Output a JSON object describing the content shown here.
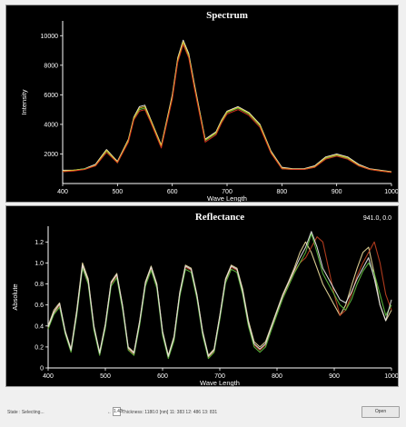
{
  "charts": {
    "spectrum": {
      "title": "Spectrum",
      "ylabel": "Intensity",
      "xlabel": "Wave Length",
      "xticks": [
        "400",
        "500",
        "600",
        "700",
        "800",
        "900",
        "1000"
      ],
      "yticks": [
        "2000",
        "4000",
        "6000",
        "8000",
        "10000"
      ]
    },
    "reflectance": {
      "title": "Reflectance",
      "ylabel": "Absolute",
      "xlabel": "Wave Length",
      "cursor_readout": "941.0, 0.0",
      "xticks": [
        "400",
        "500",
        "600",
        "700",
        "800",
        "900",
        "1000"
      ],
      "yticks": [
        "0",
        "0.2",
        "0.4",
        "0.6",
        "0.8",
        "1.0",
        "1.2"
      ]
    }
  },
  "chart_data": [
    {
      "type": "line",
      "title": "Spectrum",
      "xlabel": "Wave Length",
      "ylabel": "Intensity",
      "xlim": [
        400,
        1000
      ],
      "ylim": [
        0,
        11000
      ],
      "series_colors": [
        "#ffffff",
        "#60d040",
        "#e0c020",
        "#e03020"
      ],
      "x": [
        400,
        420,
        440,
        460,
        470,
        480,
        500,
        520,
        530,
        540,
        550,
        560,
        580,
        600,
        610,
        620,
        630,
        640,
        660,
        680,
        690,
        700,
        720,
        740,
        760,
        780,
        800,
        820,
        840,
        860,
        880,
        900,
        920,
        940,
        960,
        980,
        1000
      ],
      "series": [
        {
          "values": [
            900,
            900,
            1000,
            1300,
            1800,
            2300,
            1500,
            3000,
            4500,
            5200,
            5300,
            4400,
            2600,
            6000,
            8500,
            9700,
            8800,
            6800,
            3000,
            3500,
            4300,
            4900,
            5200,
            4800,
            4000,
            2200,
            1100,
            1000,
            1000,
            1200,
            1800,
            2000,
            1800,
            1300,
            1000,
            900,
            800
          ]
        },
        {
          "values": [
            800,
            900,
            1000,
            1200,
            1700,
            2200,
            1400,
            2900,
            4400,
            5000,
            5100,
            4300,
            2500,
            5800,
            8300,
            9500,
            8600,
            6600,
            2900,
            3400,
            4200,
            4800,
            5100,
            4700,
            3900,
            2100,
            1000,
            950,
            950,
            1100,
            1700,
            1900,
            1700,
            1200,
            950,
            850,
            750
          ]
        },
        {
          "values": [
            850,
            900,
            950,
            1250,
            1750,
            2250,
            1450,
            2950,
            4450,
            5100,
            5200,
            4350,
            2550,
            5900,
            8400,
            9600,
            8700,
            6700,
            2950,
            3450,
            4250,
            4850,
            5150,
            4750,
            3950,
            2150,
            1050,
            980,
            980,
            1150,
            1750,
            1950,
            1750,
            1250,
            980,
            880,
            780
          ]
        },
        {
          "values": [
            800,
            850,
            950,
            1200,
            1650,
            2100,
            1400,
            2800,
            4300,
            4900,
            5000,
            4200,
            2400,
            5700,
            8200,
            9400,
            8500,
            6500,
            2800,
            3300,
            4100,
            4700,
            5000,
            4600,
            3800,
            2050,
            1000,
            950,
            950,
            1100,
            1650,
            1850,
            1650,
            1200,
            950,
            850,
            750
          ]
        }
      ]
    },
    {
      "type": "line",
      "title": "Reflectance",
      "xlabel": "Wave Length",
      "ylabel": "Absolute",
      "xlim": [
        400,
        1000
      ],
      "ylim": [
        0,
        1.35
      ],
      "series_colors": [
        "#f0e0a0",
        "#c04020",
        "#60c040",
        "#e8e8e8"
      ],
      "x": [
        400,
        410,
        420,
        430,
        440,
        450,
        460,
        470,
        480,
        490,
        500,
        510,
        520,
        530,
        540,
        550,
        560,
        570,
        580,
        590,
        600,
        610,
        620,
        630,
        640,
        650,
        660,
        670,
        680,
        690,
        700,
        710,
        720,
        730,
        740,
        750,
        760,
        770,
        780,
        790,
        800,
        810,
        820,
        830,
        840,
        850,
        860,
        870,
        880,
        890,
        900,
        910,
        920,
        930,
        940,
        950,
        960,
        970,
        980,
        990,
        1000
      ],
      "series": [
        {
          "values": [
            0.4,
            0.55,
            0.62,
            0.35,
            0.18,
            0.55,
            1.0,
            0.85,
            0.4,
            0.15,
            0.42,
            0.82,
            0.9,
            0.6,
            0.2,
            0.15,
            0.45,
            0.82,
            0.97,
            0.8,
            0.35,
            0.12,
            0.3,
            0.72,
            0.98,
            0.95,
            0.7,
            0.35,
            0.12,
            0.18,
            0.5,
            0.85,
            0.98,
            0.95,
            0.75,
            0.45,
            0.25,
            0.2,
            0.25,
            0.4,
            0.55,
            0.7,
            0.82,
            0.95,
            1.1,
            1.2,
            1.1,
            0.95,
            0.8,
            0.7,
            0.6,
            0.5,
            0.6,
            0.78,
            0.95,
            1.1,
            1.15,
            0.9,
            0.6,
            0.45,
            0.55
          ]
        },
        {
          "values": [
            0.38,
            0.52,
            0.6,
            0.33,
            0.16,
            0.52,
            0.97,
            0.82,
            0.38,
            0.13,
            0.4,
            0.8,
            0.88,
            0.58,
            0.18,
            0.13,
            0.43,
            0.8,
            0.95,
            0.78,
            0.33,
            0.1,
            0.28,
            0.7,
            0.96,
            0.93,
            0.68,
            0.33,
            0.1,
            0.16,
            0.48,
            0.83,
            0.96,
            0.93,
            0.72,
            0.42,
            0.22,
            0.17,
            0.22,
            0.38,
            0.53,
            0.68,
            0.8,
            0.92,
            1.0,
            1.05,
            1.15,
            1.25,
            1.2,
            0.95,
            0.7,
            0.5,
            0.55,
            0.7,
            0.88,
            1.0,
            1.1,
            1.2,
            1.0,
            0.7,
            0.55
          ]
        },
        {
          "values": [
            0.37,
            0.51,
            0.58,
            0.32,
            0.15,
            0.5,
            0.95,
            0.8,
            0.36,
            0.12,
            0.38,
            0.78,
            0.86,
            0.56,
            0.17,
            0.12,
            0.41,
            0.78,
            0.93,
            0.76,
            0.31,
            0.09,
            0.26,
            0.68,
            0.94,
            0.91,
            0.66,
            0.31,
            0.09,
            0.15,
            0.46,
            0.81,
            0.94,
            0.91,
            0.7,
            0.4,
            0.2,
            0.15,
            0.2,
            0.36,
            0.51,
            0.66,
            0.78,
            0.9,
            1.0,
            1.1,
            1.28,
            1.1,
            0.9,
            0.8,
            0.7,
            0.6,
            0.55,
            0.65,
            0.8,
            0.92,
            1.0,
            0.9,
            0.7,
            0.5,
            0.6
          ]
        },
        {
          "values": [
            0.39,
            0.53,
            0.61,
            0.34,
            0.17,
            0.53,
            0.98,
            0.83,
            0.39,
            0.14,
            0.41,
            0.81,
            0.89,
            0.59,
            0.19,
            0.14,
            0.44,
            0.81,
            0.96,
            0.79,
            0.34,
            0.11,
            0.29,
            0.71,
            0.97,
            0.94,
            0.69,
            0.34,
            0.11,
            0.17,
            0.49,
            0.84,
            0.97,
            0.94,
            0.73,
            0.43,
            0.23,
            0.18,
            0.23,
            0.39,
            0.54,
            0.69,
            0.81,
            0.93,
            1.05,
            1.15,
            1.3,
            1.15,
            0.95,
            0.85,
            0.75,
            0.65,
            0.62,
            0.72,
            0.85,
            0.95,
            1.05,
            0.85,
            0.6,
            0.45,
            0.65
          ]
        }
      ]
    }
  ],
  "status": {
    "left_text": "State : Selecting...",
    "arrow": "←",
    "box_value": "1.43",
    "readout": "Thickness: 1180.0 [nm]  11: 383  12: 486  13: 831",
    "open_label": "Open"
  }
}
